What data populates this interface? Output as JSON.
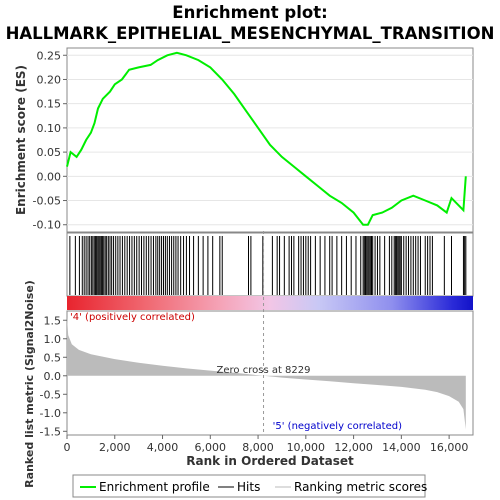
{
  "title_line1": "Enrichment plot:",
  "title_line2": "HALLMARK_EPITHELIAL_MESENCHYMAL_TRANSITION",
  "colors": {
    "es_line": "#00ee00",
    "hits": "#000000",
    "ranking_fill": "#bbbbbb",
    "pos_label": "#cc0000",
    "neg_label": "#0000cc",
    "zero_cross": "#999999"
  },
  "chart_data": {
    "type": "line",
    "es_panel": {
      "ylabel": "Enrichment score (ES)",
      "yticks": [
        "0.25",
        "0.20",
        "0.15",
        "0.10",
        "0.05",
        "0.00",
        "-0.05",
        "-0.10"
      ],
      "ylim": [
        -0.115,
        0.265
      ],
      "points": [
        [
          0,
          0.02
        ],
        [
          150,
          0.05
        ],
        [
          400,
          0.04
        ],
        [
          600,
          0.055
        ],
        [
          800,
          0.075
        ],
        [
          1000,
          0.09
        ],
        [
          1150,
          0.11
        ],
        [
          1300,
          0.14
        ],
        [
          1500,
          0.16
        ],
        [
          1800,
          0.175
        ],
        [
          2000,
          0.19
        ],
        [
          2300,
          0.2
        ],
        [
          2600,
          0.22
        ],
        [
          3000,
          0.225
        ],
        [
          3500,
          0.23
        ],
        [
          3800,
          0.24
        ],
        [
          4200,
          0.25
        ],
        [
          4600,
          0.255
        ],
        [
          5000,
          0.25
        ],
        [
          5500,
          0.24
        ],
        [
          6000,
          0.225
        ],
        [
          6500,
          0.2
        ],
        [
          7000,
          0.17
        ],
        [
          7500,
          0.135
        ],
        [
          8000,
          0.1
        ],
        [
          8500,
          0.065
        ],
        [
          9000,
          0.04
        ],
        [
          9500,
          0.02
        ],
        [
          10000,
          0.0
        ],
        [
          10500,
          -0.02
        ],
        [
          11000,
          -0.04
        ],
        [
          11500,
          -0.055
        ],
        [
          12000,
          -0.075
        ],
        [
          12400,
          -0.1
        ],
        [
          12600,
          -0.1
        ],
        [
          12800,
          -0.08
        ],
        [
          13200,
          -0.075
        ],
        [
          13600,
          -0.065
        ],
        [
          14000,
          -0.05
        ],
        [
          14500,
          -0.04
        ],
        [
          15000,
          -0.05
        ],
        [
          15500,
          -0.06
        ],
        [
          15900,
          -0.075
        ],
        [
          16100,
          -0.045
        ],
        [
          16400,
          -0.06
        ],
        [
          16600,
          -0.07
        ],
        [
          16700,
          0.0
        ]
      ]
    },
    "hits": [
      120,
      350,
      520,
      640,
      720,
      800,
      880,
      950,
      1020,
      1080,
      1140,
      1190,
      1240,
      1290,
      1340,
      1390,
      1440,
      1490,
      1540,
      1600,
      1660,
      1730,
      1800,
      1870,
      1950,
      2040,
      2130,
      2220,
      2320,
      2420,
      2520,
      2620,
      2720,
      2820,
      2920,
      3020,
      3120,
      3220,
      3320,
      3420,
      3520,
      3620,
      3720,
      3800,
      3880,
      3960,
      4040,
      4120,
      4200,
      4290,
      4380,
      4470,
      4560,
      4650,
      4760,
      4880,
      5000,
      5130,
      5300,
      5500,
      5700,
      5900,
      6100,
      6400,
      6500,
      7600,
      7700,
      8200,
      8600,
      8800,
      8900,
      9100,
      9300,
      9400,
      9500,
      9700,
      9800,
      9900,
      10000,
      10100,
      10200,
      10400,
      10600,
      10800,
      11000,
      11100,
      11300,
      11500,
      11700,
      11900,
      12100,
      12300,
      12400,
      12450,
      12500,
      12550,
      12600,
      12650,
      12700,
      12750,
      12800,
      12900,
      13000,
      13100,
      13300,
      13500,
      13600,
      13700,
      13750,
      13800,
      13850,
      13900,
      13950,
      14000,
      14100,
      14200,
      14300,
      14400,
      14500,
      14600,
      14700,
      14800,
      15000,
      15100,
      15200,
      15300,
      15800,
      16100,
      16600,
      16650,
      16700
    ],
    "x_range": [
      0,
      17000
    ],
    "ranking_panel": {
      "ylabel": "Ranked list metric (Signal2Noise)",
      "yticks": [
        "1.5",
        "1.0",
        "0.5",
        "0.0",
        "-0.5",
        "-1.0",
        "-1.5"
      ],
      "ylim": [
        -1.6,
        1.75
      ],
      "zero_cross_label": "Zero cross at 8229",
      "zero_cross": 8229,
      "points": [
        [
          0,
          1.6
        ],
        [
          50,
          1.1
        ],
        [
          200,
          0.85
        ],
        [
          500,
          0.7
        ],
        [
          1000,
          0.58
        ],
        [
          2000,
          0.45
        ],
        [
          3000,
          0.35
        ],
        [
          4000,
          0.27
        ],
        [
          5000,
          0.2
        ],
        [
          6000,
          0.14
        ],
        [
          7000,
          0.08
        ],
        [
          8229,
          0.0
        ],
        [
          9000,
          -0.05
        ],
        [
          10000,
          -0.1
        ],
        [
          11000,
          -0.15
        ],
        [
          12000,
          -0.2
        ],
        [
          13000,
          -0.25
        ],
        [
          14000,
          -0.3
        ],
        [
          15000,
          -0.38
        ],
        [
          15500,
          -0.44
        ],
        [
          16000,
          -0.55
        ],
        [
          16400,
          -0.7
        ],
        [
          16600,
          -0.9
        ],
        [
          16700,
          -1.45
        ]
      ]
    },
    "pos_label": "'4' (positively correlated)",
    "neg_label": "'5' (negatively correlated)",
    "xlabel": "Rank in Ordered Dataset",
    "xticks": [
      "0",
      "2,000",
      "4,000",
      "6,000",
      "8,000",
      "10,000",
      "12,000",
      "14,000",
      "16,000"
    ],
    "legend": [
      "Enrichment profile",
      "Hits",
      "Ranking metric scores"
    ]
  }
}
